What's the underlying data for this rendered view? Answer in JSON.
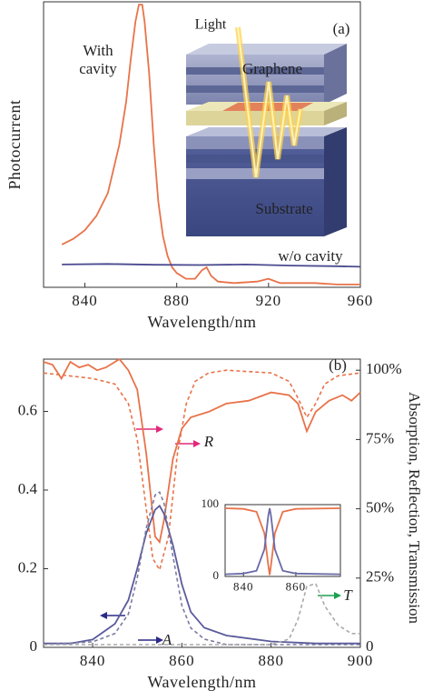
{
  "chart_data": [
    {
      "type": "line",
      "xlabel": "Wavelength/nm",
      "ylabel": "Photocurrent",
      "xlim": [
        822,
        960
      ],
      "xticks": [
        840,
        880,
        920,
        960
      ],
      "ylim": [
        0,
        1
      ],
      "series": [
        {
          "name": "With cavity",
          "color": "#e8734a",
          "style": "solid",
          "x": [
            830,
            835,
            840,
            845,
            850,
            855,
            858,
            860,
            862,
            863.5,
            865,
            866,
            868,
            870,
            872,
            874,
            876,
            878,
            880,
            884,
            888,
            891,
            893,
            895,
            898,
            905,
            915,
            920,
            925,
            940,
            950,
            960
          ],
          "values": [
            0.15,
            0.17,
            0.2,
            0.25,
            0.33,
            0.5,
            0.65,
            0.8,
            0.93,
            0.99,
            0.99,
            0.93,
            0.75,
            0.5,
            0.3,
            0.18,
            0.11,
            0.07,
            0.05,
            0.03,
            0.03,
            0.06,
            0.07,
            0.04,
            0.02,
            0.015,
            0.02,
            0.03,
            0.015,
            0.015,
            0.01,
            0.01
          ]
        },
        {
          "name": "w/o cavity",
          "color": "#4a4a90",
          "style": "solid",
          "x": [
            830,
            850,
            870,
            890,
            910,
            930,
            950,
            960
          ],
          "values": [
            0.08,
            0.082,
            0.079,
            0.078,
            0.08,
            0.076,
            0.074,
            0.072
          ]
        }
      ],
      "annotations": [
        {
          "text": "With cavity",
          "color": "#222"
        },
        {
          "text": "w/o cavity",
          "color": "#2a3a8c"
        },
        {
          "text": "(a)",
          "color": "#222"
        },
        {
          "text": "Light",
          "color": "#222"
        },
        {
          "text": "Graphene",
          "color": "#ffffff"
        },
        {
          "text": "Substrate",
          "color": "#ffffff"
        }
      ]
    },
    {
      "type": "line",
      "xlabel": "Wavelength/nm",
      "y2label": "Absorption, Reflection, Transmission",
      "xlim": [
        829,
        900
      ],
      "xticks": [
        840,
        860,
        880,
        900
      ],
      "ylim": [
        0,
        0.733
      ],
      "yticks": [
        0,
        0.2,
        0.4,
        0.6
      ],
      "y2lim": [
        0,
        104
      ],
      "y2ticks": [
        {
          "value": 0,
          "label": "0"
        },
        {
          "value": 25,
          "label": "25%"
        },
        {
          "value": 50,
          "label": "50%"
        },
        {
          "value": 75,
          "label": "75%"
        },
        {
          "value": 100,
          "label": "100%"
        }
      ],
      "series": [
        {
          "name": "R",
          "color": "#e8734a",
          "style": "solid",
          "axis": "y2",
          "x": [
            829,
            831,
            833,
            835,
            837,
            839,
            841,
            843,
            846,
            848,
            850,
            852,
            854,
            855,
            856,
            858,
            860,
            862,
            866,
            870,
            875,
            880,
            884,
            886,
            888,
            890,
            893,
            896,
            898,
            900
          ],
          "values": [
            103,
            102,
            97,
            103,
            101,
            102,
            100,
            101,
            104,
            100,
            93,
            70,
            40,
            38,
            46,
            68,
            79,
            83,
            85,
            88,
            89,
            92,
            91,
            88,
            78,
            85,
            89,
            91,
            89,
            92
          ]
        },
        {
          "name": "R",
          "color": "#e8734a",
          "style": "dashed",
          "axis": "y2",
          "x": [
            829,
            840,
            845,
            848,
            850,
            852,
            853.5,
            855,
            857,
            859,
            861,
            863,
            866,
            870,
            880,
            884,
            886,
            888,
            890,
            892,
            895,
            900
          ],
          "values": [
            99,
            97,
            95,
            88,
            75,
            50,
            32,
            28,
            40,
            70,
            88,
            96,
            99,
            100,
            99,
            96,
            90,
            83,
            88,
            95,
            98,
            99
          ]
        },
        {
          "name": "A",
          "color": "#5a5a9c",
          "style": "solid",
          "x": [
            829,
            835,
            840,
            845,
            848,
            850,
            852,
            854,
            855,
            856,
            858,
            860,
            862,
            865,
            870,
            880,
            890,
            900
          ],
          "values": [
            0.01,
            0.01,
            0.02,
            0.06,
            0.12,
            0.2,
            0.29,
            0.35,
            0.36,
            0.34,
            0.26,
            0.16,
            0.09,
            0.05,
            0.03,
            0.015,
            0.01,
            0.01
          ]
        },
        {
          "name": "A",
          "color": "#7a7aa0",
          "style": "dashed",
          "axis": "y2",
          "x": [
            829,
            840,
            845,
            848,
            850,
            852,
            854,
            855,
            856,
            858,
            860,
            862,
            865,
            870,
            880,
            890,
            900
          ],
          "values": [
            1,
            2,
            5,
            12,
            25,
            43,
            55,
            56,
            52,
            33,
            15,
            7,
            3,
            1,
            1,
            1,
            1
          ]
        },
        {
          "name": "T",
          "color": "#aaaaaa",
          "style": "dashed",
          "axis": "y2",
          "x": [
            829,
            850,
            860,
            880,
            884,
            886,
            888,
            890,
            892,
            895,
            898,
            900
          ],
          "values": [
            1,
            1,
            1,
            1,
            3,
            10,
            22,
            23,
            15,
            8,
            5,
            5
          ]
        }
      ],
      "annotations": [
        {
          "text": "(b)",
          "color": "#222"
        },
        {
          "text": "R",
          "color": "#222"
        },
        {
          "text": "A",
          "color": "#222"
        },
        {
          "text": "T",
          "color": "#222"
        }
      ]
    },
    {
      "type": "line",
      "xlim": [
        833,
        877
      ],
      "xticks": [
        840,
        860
      ],
      "ylim": [
        0,
        100
      ],
      "yticks": [
        0,
        100
      ],
      "series": [
        {
          "name": "R",
          "color": "#e8734a",
          "style": "solid",
          "x": [
            833,
            840,
            845,
            848,
            849.5,
            850,
            850.5,
            852,
            855,
            860,
            877
          ],
          "values": [
            95,
            94,
            90,
            60,
            15,
            2,
            15,
            60,
            90,
            94,
            95
          ]
        },
        {
          "name": "A",
          "color": "#6a6aa8",
          "style": "solid",
          "x": [
            833,
            840,
            845,
            848,
            849.5,
            850,
            850.5,
            852,
            855,
            860,
            877
          ],
          "values": [
            3,
            4,
            8,
            38,
            85,
            95,
            85,
            38,
            8,
            4,
            3
          ]
        }
      ]
    }
  ]
}
